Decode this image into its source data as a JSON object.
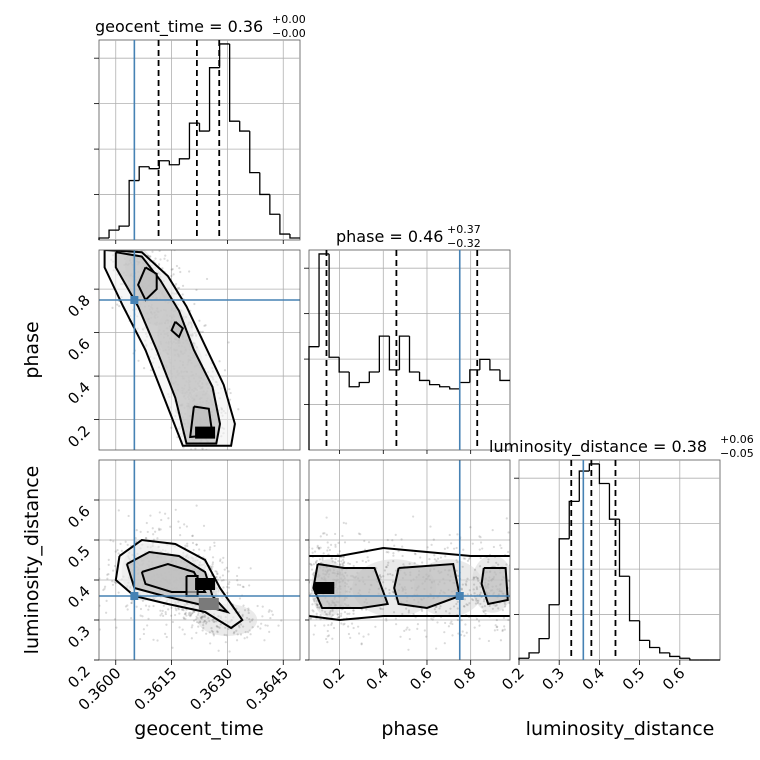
{
  "chart_data": {
    "type": "corner",
    "truth_color": "#4682b4",
    "parameters": [
      {
        "name": "geocent_time",
        "label": "geocent_time",
        "range": [
          0.35955,
          0.36495
        ],
        "ticks": [
          0.36,
          0.3615,
          0.363,
          0.3645
        ],
        "tick_labels": [
          "0.3600",
          "0.3615",
          "0.3630",
          "0.3645"
        ],
        "truth": 0.3605,
        "quantiles": [
          0.36115,
          0.36218,
          0.36278
        ],
        "title": {
          "prefix": "geocent_time = 0.36",
          "plus": "+0.00",
          "minus": "−0.00"
        },
        "hist": {
          "edges": [
            0.35955,
            0.35982,
            0.36009,
            0.36036,
            0.36063,
            0.3609,
            0.36117,
            0.36144,
            0.36171,
            0.36198,
            0.36225,
            0.36252,
            0.36279,
            0.36306,
            0.36333,
            0.3636,
            0.36387,
            0.36414,
            0.36441,
            0.36468,
            0.36495
          ],
          "counts": [
            1,
            5,
            7,
            30,
            37,
            36,
            40,
            38,
            41,
            59,
            55,
            87,
            99,
            60,
            55,
            34,
            23,
            13,
            3,
            1
          ]
        }
      },
      {
        "name": "phase",
        "label": "phase",
        "range": [
          0.06,
          0.98
        ],
        "ticks": [
          0.2,
          0.4,
          0.6,
          0.8
        ],
        "tick_labels": [
          "0.2",
          "0.4",
          "0.6",
          "0.8"
        ],
        "truth": 0.75,
        "quantiles": [
          0.14,
          0.46,
          0.83
        ],
        "title": {
          "prefix": "phase = 0.46",
          "plus": "+0.37",
          "minus": "−0.32"
        },
        "hist": {
          "edges": [
            0.06,
            0.106,
            0.152,
            0.198,
            0.244,
            0.29,
            0.336,
            0.382,
            0.428,
            0.474,
            0.52,
            0.566,
            0.612,
            0.658,
            0.704,
            0.75,
            0.796,
            0.842,
            0.888,
            0.934,
            0.98
          ],
          "counts": [
            49,
            93,
            44,
            37,
            30,
            32,
            37,
            54,
            38,
            54,
            37,
            33,
            31,
            30,
            29,
            32,
            38,
            43,
            38,
            33
          ]
        }
      },
      {
        "name": "luminosity_distance",
        "label": "luminosity_distance",
        "range": [
          0.2,
          0.7
        ],
        "ticks": [
          0.2,
          0.3,
          0.4,
          0.5,
          0.6
        ],
        "tick_labels": [
          "0.2",
          "0.3",
          "0.4",
          "0.5",
          "0.6"
        ],
        "truth": 0.36,
        "quantiles": [
          0.33,
          0.38,
          0.44
        ],
        "title": {
          "prefix": "luminosity_distance = 0.38",
          "plus": "+0.06",
          "minus": "−0.05"
        },
        "hist": {
          "edges": [
            0.2,
            0.225,
            0.25,
            0.275,
            0.3,
            0.325,
            0.35,
            0.375,
            0.4,
            0.425,
            0.45,
            0.475,
            0.5,
            0.525,
            0.55,
            0.575,
            0.6,
            0.625,
            0.65,
            0.675,
            0.7
          ],
          "counts": [
            1,
            4,
            12,
            31,
            68,
            89,
            106,
            110,
            99,
            79,
            47,
            22,
            11,
            7,
            4,
            2,
            1,
            0,
            0,
            0
          ]
        }
      }
    ],
    "pairs": [
      {
        "x": "geocent_time",
        "y": "phase",
        "truth": [
          0.3605,
          0.75
        ],
        "blobs": [
          {
            "cx": 0.3606,
            "cy": 0.91,
            "sx": 0.00022,
            "sy": 0.05,
            "w": 0.6
          },
          {
            "cx": 0.3611,
            "cy": 0.76,
            "sx": 0.0003,
            "sy": 0.08,
            "w": 0.9
          },
          {
            "cx": 0.3616,
            "cy": 0.6,
            "sx": 0.0003,
            "sy": 0.07,
            "w": 0.8
          },
          {
            "cx": 0.3619,
            "cy": 0.44,
            "sx": 0.00028,
            "sy": 0.08,
            "w": 0.8
          },
          {
            "cx": 0.3623,
            "cy": 0.22,
            "sx": 0.00025,
            "sy": 0.07,
            "w": 1.3
          }
        ],
        "contours": [
          [
            [
              0.3597,
              0.98
            ],
            [
              0.3607,
              0.97
            ],
            [
              0.3614,
              0.86
            ],
            [
              0.3619,
              0.72
            ],
            [
              0.3624,
              0.54
            ],
            [
              0.3629,
              0.36
            ],
            [
              0.3632,
              0.18
            ],
            [
              0.3631,
              0.08
            ],
            [
              0.3618,
              0.08
            ],
            [
              0.3613,
              0.3
            ],
            [
              0.3608,
              0.52
            ],
            [
              0.3602,
              0.72
            ],
            [
              0.3597,
              0.9
            ],
            [
              0.3597,
              0.98
            ]
          ],
          [
            [
              0.36,
              0.97
            ],
            [
              0.3607,
              0.95
            ],
            [
              0.3612,
              0.84
            ],
            [
              0.3617,
              0.7
            ],
            [
              0.3621,
              0.52
            ],
            [
              0.3626,
              0.35
            ],
            [
              0.3628,
              0.18
            ],
            [
              0.3627,
              0.09
            ],
            [
              0.3619,
              0.09
            ],
            [
              0.3616,
              0.3
            ],
            [
              0.3611,
              0.52
            ],
            [
              0.3606,
              0.72
            ],
            [
              0.36,
              0.9
            ],
            [
              0.36,
              0.97
            ]
          ],
          [
            [
              0.3608,
              0.9
            ],
            [
              0.3611,
              0.87
            ],
            [
              0.3611,
              0.8
            ],
            [
              0.3608,
              0.75
            ],
            [
              0.3606,
              0.82
            ],
            [
              0.3608,
              0.9
            ]
          ],
          [
            [
              0.3616,
              0.65
            ],
            [
              0.3618,
              0.62
            ],
            [
              0.3617,
              0.58
            ],
            [
              0.3615,
              0.61
            ],
            [
              0.3616,
              0.65
            ]
          ],
          [
            [
              0.3621,
              0.26
            ],
            [
              0.3625,
              0.25
            ],
            [
              0.3626,
              0.13
            ],
            [
              0.362,
              0.12
            ],
            [
              0.3621,
              0.26
            ]
          ]
        ],
        "peaks": [
          {
            "x": 0.3624,
            "y": 0.14
          }
        ]
      },
      {
        "x": "geocent_time",
        "y": "luminosity_distance",
        "truth": [
          0.3605,
          0.36
        ],
        "blobs": [
          {
            "cx": 0.3608,
            "cy": 0.42,
            "sx": 0.0004,
            "sy": 0.045,
            "w": 0.9
          },
          {
            "cx": 0.3618,
            "cy": 0.4,
            "sx": 0.0004,
            "sy": 0.04,
            "w": 1.0
          },
          {
            "cx": 0.3623,
            "cy": 0.37,
            "sx": 0.0003,
            "sy": 0.03,
            "w": 1.3
          },
          {
            "cx": 0.363,
            "cy": 0.3,
            "sx": 0.0005,
            "sy": 0.025,
            "w": 0.5
          }
        ],
        "contours": [
          [
            [
              0.3601,
              0.46
            ],
            [
              0.3607,
              0.5
            ],
            [
              0.3616,
              0.49
            ],
            [
              0.3624,
              0.45
            ],
            [
              0.3628,
              0.38
            ],
            [
              0.3634,
              0.3
            ],
            [
              0.3631,
              0.28
            ],
            [
              0.3624,
              0.32
            ],
            [
              0.3614,
              0.34
            ],
            [
              0.3605,
              0.36
            ],
            [
              0.36,
              0.4
            ],
            [
              0.3601,
              0.46
            ]
          ],
          [
            [
              0.3603,
              0.44
            ],
            [
              0.3609,
              0.47
            ],
            [
              0.3617,
              0.46
            ],
            [
              0.3624,
              0.42
            ],
            [
              0.3626,
              0.36
            ],
            [
              0.363,
              0.32
            ],
            [
              0.3622,
              0.34
            ],
            [
              0.3613,
              0.36
            ],
            [
              0.3605,
              0.38
            ],
            [
              0.3603,
              0.44
            ]
          ],
          [
            [
              0.3607,
              0.42
            ],
            [
              0.3614,
              0.44
            ],
            [
              0.3621,
              0.42
            ],
            [
              0.3624,
              0.37
            ],
            [
              0.3615,
              0.37
            ],
            [
              0.3608,
              0.39
            ],
            [
              0.3607,
              0.42
            ]
          ],
          [
            [
              0.3619,
              0.41
            ],
            [
              0.3622,
              0.41
            ],
            [
              0.3622,
              0.36
            ],
            [
              0.3619,
              0.36
            ],
            [
              0.3619,
              0.41
            ]
          ]
        ],
        "peaks": [
          {
            "x": 0.3624,
            "y": 0.39
          },
          {
            "x": 0.3625,
            "y": 0.34
          }
        ]
      },
      {
        "x": "phase",
        "y": "luminosity_distance",
        "truth": [
          0.75,
          0.36
        ],
        "blobs": [
          {
            "cx": 0.15,
            "cy": 0.38,
            "sx": 0.05,
            "sy": 0.045,
            "w": 1.4
          },
          {
            "cx": 0.45,
            "cy": 0.38,
            "sx": 0.12,
            "sy": 0.045,
            "w": 0.8
          },
          {
            "cx": 0.7,
            "cy": 0.38,
            "sx": 0.1,
            "sy": 0.045,
            "w": 0.7
          },
          {
            "cx": 0.9,
            "cy": 0.39,
            "sx": 0.06,
            "sy": 0.045,
            "w": 0.8
          }
        ],
        "contours": [
          [
            [
              0.06,
              0.46
            ],
            [
              0.2,
              0.46
            ],
            [
              0.4,
              0.48
            ],
            [
              0.6,
              0.47
            ],
            [
              0.8,
              0.46
            ],
            [
              0.98,
              0.46
            ]
          ],
          [
            [
              0.06,
              0.31
            ],
            [
              0.2,
              0.3
            ],
            [
              0.4,
              0.31
            ],
            [
              0.6,
              0.31
            ],
            [
              0.8,
              0.31
            ],
            [
              0.98,
              0.31
            ]
          ],
          [
            [
              0.1,
              0.44
            ],
            [
              0.22,
              0.43
            ],
            [
              0.36,
              0.43
            ],
            [
              0.42,
              0.34
            ],
            [
              0.3,
              0.33
            ],
            [
              0.12,
              0.33
            ],
            [
              0.08,
              0.38
            ],
            [
              0.1,
              0.44
            ]
          ],
          [
            [
              0.47,
              0.43
            ],
            [
              0.72,
              0.44
            ],
            [
              0.75,
              0.36
            ],
            [
              0.6,
              0.33
            ],
            [
              0.47,
              0.34
            ],
            [
              0.45,
              0.38
            ],
            [
              0.47,
              0.43
            ]
          ],
          [
            [
              0.86,
              0.43
            ],
            [
              0.96,
              0.43
            ],
            [
              0.97,
              0.35
            ],
            [
              0.88,
              0.34
            ],
            [
              0.85,
              0.39
            ],
            [
              0.86,
              0.43
            ]
          ]
        ],
        "peaks": [
          {
            "x": 0.13,
            "y": 0.38
          }
        ]
      }
    ]
  }
}
